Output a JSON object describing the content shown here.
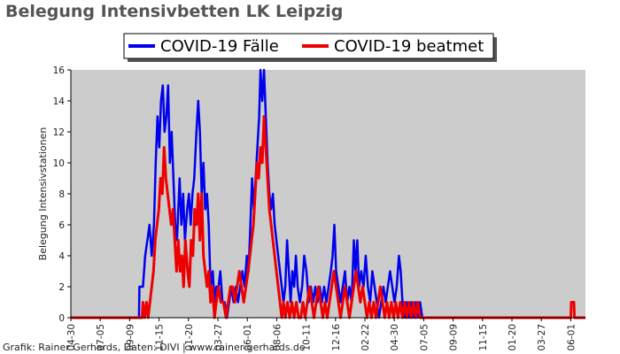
{
  "chart_data": {
    "type": "line",
    "title": "Belegung Intensivbetten LK Leipzig",
    "ylabel": "Belegung Intensivstationen",
    "xlabel": "",
    "ylim": [
      0,
      16
    ],
    "yticks": [
      0,
      2,
      4,
      6,
      8,
      10,
      12,
      14,
      16
    ],
    "xticks": [
      "04-30",
      "07-05",
      "09-09",
      "11-15",
      "01-20",
      "03-27",
      "06-01",
      "08-06",
      "10-11",
      "12-16",
      "02-22",
      "04-30",
      "07-05",
      "09-09",
      "11-15",
      "01-20",
      "03-27",
      "06-01"
    ],
    "x_domain": [
      "2020-04-30",
      "2023-07-08"
    ],
    "grid": false,
    "legend_position": "top-center",
    "background": "#cccccc",
    "credit": "Grafik: Rainer Gerhards, Daten: DIVI | www.rainer-gerhards.de",
    "series": [
      {
        "name": "COVID-19 Fälle",
        "color": "#0000ee",
        "points": [
          [
            "2020-04-30",
            0
          ],
          [
            "2020-10-01",
            0
          ],
          [
            "2020-10-02",
            2
          ],
          [
            "2020-10-10",
            2
          ],
          [
            "2020-10-15",
            4
          ],
          [
            "2020-10-20",
            5
          ],
          [
            "2020-10-25",
            6
          ],
          [
            "2020-10-30",
            4
          ],
          [
            "2020-11-04",
            6
          ],
          [
            "2020-11-08",
            10
          ],
          [
            "2020-11-12",
            13
          ],
          [
            "2020-11-16",
            11
          ],
          [
            "2020-11-20",
            14
          ],
          [
            "2020-11-24",
            15
          ],
          [
            "2020-11-28",
            12
          ],
          [
            "2020-12-02",
            13
          ],
          [
            "2020-12-06",
            15
          ],
          [
            "2020-12-10",
            10
          ],
          [
            "2020-12-14",
            12
          ],
          [
            "2020-12-18",
            9
          ],
          [
            "2020-12-22",
            6
          ],
          [
            "2020-12-26",
            5
          ],
          [
            "2021-01-01",
            9
          ],
          [
            "2021-01-05",
            6
          ],
          [
            "2021-01-09",
            8
          ],
          [
            "2021-01-13",
            5
          ],
          [
            "2021-01-18",
            7
          ],
          [
            "2021-01-22",
            8
          ],
          [
            "2021-01-26",
            6
          ],
          [
            "2021-01-30",
            8
          ],
          [
            "2021-02-03",
            9
          ],
          [
            "2021-02-08",
            12
          ],
          [
            "2021-02-12",
            14
          ],
          [
            "2021-02-16",
            12
          ],
          [
            "2021-02-20",
            8
          ],
          [
            "2021-02-24",
            10
          ],
          [
            "2021-02-28",
            7
          ],
          [
            "2021-03-04",
            8
          ],
          [
            "2021-03-08",
            6
          ],
          [
            "2021-03-12",
            2
          ],
          [
            "2021-03-17",
            3
          ],
          [
            "2021-03-21",
            1
          ],
          [
            "2021-03-25",
            2
          ],
          [
            "2021-03-30",
            2
          ],
          [
            "2021-04-03",
            3
          ],
          [
            "2021-04-08",
            1
          ],
          [
            "2021-04-13",
            1
          ],
          [
            "2021-04-18",
            0
          ],
          [
            "2021-04-23",
            1
          ],
          [
            "2021-04-28",
            2
          ],
          [
            "2021-05-03",
            1
          ],
          [
            "2021-05-08",
            2
          ],
          [
            "2021-05-13",
            1
          ],
          [
            "2021-05-18",
            2
          ],
          [
            "2021-05-23",
            3
          ],
          [
            "2021-05-28",
            2
          ],
          [
            "2021-06-02",
            4
          ],
          [
            "2021-06-06",
            3
          ],
          [
            "2021-06-10",
            6
          ],
          [
            "2021-06-14",
            9
          ],
          [
            "2021-06-18",
            7
          ],
          [
            "2021-06-22",
            9
          ],
          [
            "2021-06-26",
            11
          ],
          [
            "2021-06-30",
            13
          ],
          [
            "2021-07-03",
            16
          ],
          [
            "2021-07-07",
            14
          ],
          [
            "2021-07-11",
            16
          ],
          [
            "2021-07-15",
            13
          ],
          [
            "2021-07-19",
            10
          ],
          [
            "2021-07-23",
            8
          ],
          [
            "2021-07-27",
            7
          ],
          [
            "2021-07-31",
            8
          ],
          [
            "2021-08-04",
            6
          ],
          [
            "2021-08-08",
            5
          ],
          [
            "2021-08-12",
            4
          ],
          [
            "2021-08-16",
            3
          ],
          [
            "2021-08-20",
            2
          ],
          [
            "2021-08-24",
            1
          ],
          [
            "2021-08-28",
            2
          ],
          [
            "2021-09-01",
            5
          ],
          [
            "2021-09-05",
            3
          ],
          [
            "2021-09-09",
            1
          ],
          [
            "2021-09-13",
            3
          ],
          [
            "2021-09-17",
            2
          ],
          [
            "2021-09-21",
            4
          ],
          [
            "2021-09-25",
            2
          ],
          [
            "2021-09-30",
            1
          ],
          [
            "2021-10-05",
            2
          ],
          [
            "2021-10-10",
            4
          ],
          [
            "2021-10-15",
            3
          ],
          [
            "2021-10-20",
            1
          ],
          [
            "2021-10-25",
            2
          ],
          [
            "2021-10-30",
            1
          ],
          [
            "2021-11-04",
            2
          ],
          [
            "2021-11-09",
            1
          ],
          [
            "2021-11-14",
            2
          ],
          [
            "2021-11-19",
            1
          ],
          [
            "2021-11-24",
            2
          ],
          [
            "2021-11-29",
            1
          ],
          [
            "2021-12-04",
            2
          ],
          [
            "2021-12-09",
            3
          ],
          [
            "2021-12-13",
            4
          ],
          [
            "2021-12-17",
            6
          ],
          [
            "2021-12-21",
            3
          ],
          [
            "2021-12-26",
            2
          ],
          [
            "2021-12-31",
            1
          ],
          [
            "2022-01-05",
            2
          ],
          [
            "2022-01-10",
            3
          ],
          [
            "2022-01-15",
            1
          ],
          [
            "2022-01-20",
            2
          ],
          [
            "2022-01-25",
            1
          ],
          [
            "2022-01-30",
            5
          ],
          [
            "2022-02-03",
            3
          ],
          [
            "2022-02-07",
            5
          ],
          [
            "2022-02-11",
            2
          ],
          [
            "2022-02-16",
            3
          ],
          [
            "2022-02-21",
            2
          ],
          [
            "2022-02-26",
            4
          ],
          [
            "2022-03-03",
            2
          ],
          [
            "2022-03-08",
            1
          ],
          [
            "2022-03-13",
            3
          ],
          [
            "2022-03-18",
            2
          ],
          [
            "2022-03-23",
            1
          ],
          [
            "2022-03-28",
            0
          ],
          [
            "2022-04-02",
            1
          ],
          [
            "2022-04-07",
            2
          ],
          [
            "2022-04-12",
            1
          ],
          [
            "2022-04-17",
            2
          ],
          [
            "2022-04-22",
            3
          ],
          [
            "2022-04-27",
            2
          ],
          [
            "2022-05-02",
            1
          ],
          [
            "2022-05-07",
            2
          ],
          [
            "2022-05-12",
            4
          ],
          [
            "2022-05-16",
            3
          ],
          [
            "2022-05-20",
            1
          ],
          [
            "2022-05-25",
            0
          ],
          [
            "2022-05-30",
            1
          ],
          [
            "2022-06-04",
            0
          ],
          [
            "2022-06-09",
            1
          ],
          [
            "2022-06-14",
            0
          ],
          [
            "2022-06-19",
            1
          ],
          [
            "2022-06-24",
            0
          ],
          [
            "2022-06-29",
            1
          ],
          [
            "2022-07-04",
            0
          ],
          [
            "2022-07-08",
            0
          ]
        ]
      },
      {
        "name": "COVID-19 beatmet",
        "color": "#ee0000",
        "points": [
          [
            "2020-04-30",
            0
          ],
          [
            "2020-10-08",
            0
          ],
          [
            "2020-10-10",
            1
          ],
          [
            "2020-10-14",
            0
          ],
          [
            "2020-10-18",
            1
          ],
          [
            "2020-10-22",
            0
          ],
          [
            "2020-10-26",
            1
          ],
          [
            "2020-10-30",
            2
          ],
          [
            "2020-11-03",
            3
          ],
          [
            "2020-11-07",
            5
          ],
          [
            "2020-11-11",
            6
          ],
          [
            "2020-11-15",
            7
          ],
          [
            "2020-11-19",
            9
          ],
          [
            "2020-11-23",
            8
          ],
          [
            "2020-11-27",
            11
          ],
          [
            "2020-12-01",
            9
          ],
          [
            "2020-12-05",
            8
          ],
          [
            "2020-12-09",
            7
          ],
          [
            "2020-12-13",
            6
          ],
          [
            "2020-12-17",
            7
          ],
          [
            "2020-12-21",
            5
          ],
          [
            "2020-12-25",
            3
          ],
          [
            "2020-12-29",
            5
          ],
          [
            "2021-01-02",
            3
          ],
          [
            "2021-01-06",
            4
          ],
          [
            "2021-01-10",
            2
          ],
          [
            "2021-01-14",
            5
          ],
          [
            "2021-01-19",
            3
          ],
          [
            "2021-01-23",
            2
          ],
          [
            "2021-01-27",
            5
          ],
          [
            "2021-01-31",
            4
          ],
          [
            "2021-02-04",
            7
          ],
          [
            "2021-02-08",
            6
          ],
          [
            "2021-02-12",
            8
          ],
          [
            "2021-02-16",
            5
          ],
          [
            "2021-02-20",
            8
          ],
          [
            "2021-02-24",
            4
          ],
          [
            "2021-02-28",
            3
          ],
          [
            "2021-03-04",
            2
          ],
          [
            "2021-03-08",
            3
          ],
          [
            "2021-03-12",
            1
          ],
          [
            "2021-03-16",
            2
          ],
          [
            "2021-03-21",
            0
          ],
          [
            "2021-03-25",
            1
          ],
          [
            "2021-03-30",
            2
          ],
          [
            "2021-04-04",
            1
          ],
          [
            "2021-04-10",
            1
          ],
          [
            "2021-04-16",
            0
          ],
          [
            "2021-04-21",
            1
          ],
          [
            "2021-04-26",
            2
          ],
          [
            "2021-05-01",
            2
          ],
          [
            "2021-05-06",
            1
          ],
          [
            "2021-05-11",
            2
          ],
          [
            "2021-05-16",
            3
          ],
          [
            "2021-05-21",
            2
          ],
          [
            "2021-05-26",
            1
          ],
          [
            "2021-05-31",
            2
          ],
          [
            "2021-06-05",
            3
          ],
          [
            "2021-06-09",
            4
          ],
          [
            "2021-06-13",
            5
          ],
          [
            "2021-06-17",
            6
          ],
          [
            "2021-06-21",
            8
          ],
          [
            "2021-06-25",
            10
          ],
          [
            "2021-06-29",
            9
          ],
          [
            "2021-07-03",
            11
          ],
          [
            "2021-07-07",
            10
          ],
          [
            "2021-07-11",
            13
          ],
          [
            "2021-07-15",
            11
          ],
          [
            "2021-07-19",
            9
          ],
          [
            "2021-07-23",
            7
          ],
          [
            "2021-07-27",
            6
          ],
          [
            "2021-07-31",
            5
          ],
          [
            "2021-08-04",
            4
          ],
          [
            "2021-08-08",
            3
          ],
          [
            "2021-08-12",
            2
          ],
          [
            "2021-08-16",
            1
          ],
          [
            "2021-08-20",
            0
          ],
          [
            "2021-08-24",
            1
          ],
          [
            "2021-08-28",
            0
          ],
          [
            "2021-09-02",
            1
          ],
          [
            "2021-09-07",
            0
          ],
          [
            "2021-09-12",
            1
          ],
          [
            "2021-09-17",
            0
          ],
          [
            "2021-09-22",
            1
          ],
          [
            "2021-09-27",
            0
          ],
          [
            "2021-10-02",
            0
          ],
          [
            "2021-10-07",
            1
          ],
          [
            "2021-10-12",
            0
          ],
          [
            "2021-10-17",
            1
          ],
          [
            "2021-10-22",
            2
          ],
          [
            "2021-10-27",
            1
          ],
          [
            "2021-11-01",
            0
          ],
          [
            "2021-11-06",
            1
          ],
          [
            "2021-11-11",
            2
          ],
          [
            "2021-11-16",
            1
          ],
          [
            "2021-11-21",
            0
          ],
          [
            "2021-11-26",
            1
          ],
          [
            "2021-12-01",
            0
          ],
          [
            "2021-12-06",
            1
          ],
          [
            "2021-12-11",
            2
          ],
          [
            "2021-12-16",
            3
          ],
          [
            "2021-12-21",
            2
          ],
          [
            "2021-12-26",
            1
          ],
          [
            "2021-12-31",
            0
          ],
          [
            "2022-01-05",
            1
          ],
          [
            "2022-01-10",
            2
          ],
          [
            "2022-01-15",
            1
          ],
          [
            "2022-01-20",
            0
          ],
          [
            "2022-01-25",
            1
          ],
          [
            "2022-01-30",
            2
          ],
          [
            "2022-02-04",
            3
          ],
          [
            "2022-02-09",
            2
          ],
          [
            "2022-02-14",
            1
          ],
          [
            "2022-02-19",
            2
          ],
          [
            "2022-02-24",
            1
          ],
          [
            "2022-03-01",
            0
          ],
          [
            "2022-03-06",
            1
          ],
          [
            "2022-03-11",
            0
          ],
          [
            "2022-03-16",
            1
          ],
          [
            "2022-03-21",
            0
          ],
          [
            "2022-03-26",
            1
          ],
          [
            "2022-03-31",
            2
          ],
          [
            "2022-04-05",
            1
          ],
          [
            "2022-04-10",
            0
          ],
          [
            "2022-04-15",
            1
          ],
          [
            "2022-04-20",
            0
          ],
          [
            "2022-04-25",
            1
          ],
          [
            "2022-04-30",
            0
          ],
          [
            "2022-05-05",
            1
          ],
          [
            "2022-05-10",
            0
          ],
          [
            "2022-05-15",
            1
          ],
          [
            "2022-05-20",
            0
          ],
          [
            "2022-05-25",
            1
          ],
          [
            "2022-05-30",
            0
          ],
          [
            "2022-06-04",
            1
          ],
          [
            "2022-06-09",
            0
          ],
          [
            "2022-06-14",
            1
          ],
          [
            "2022-06-19",
            0
          ],
          [
            "2022-06-24",
            1
          ],
          [
            "2022-06-29",
            0
          ],
          [
            "2023-06-05",
            0
          ],
          [
            "2023-06-06",
            1
          ],
          [
            "2023-06-12",
            1
          ],
          [
            "2023-06-13",
            0
          ],
          [
            "2023-07-08",
            0
          ]
        ]
      }
    ]
  }
}
